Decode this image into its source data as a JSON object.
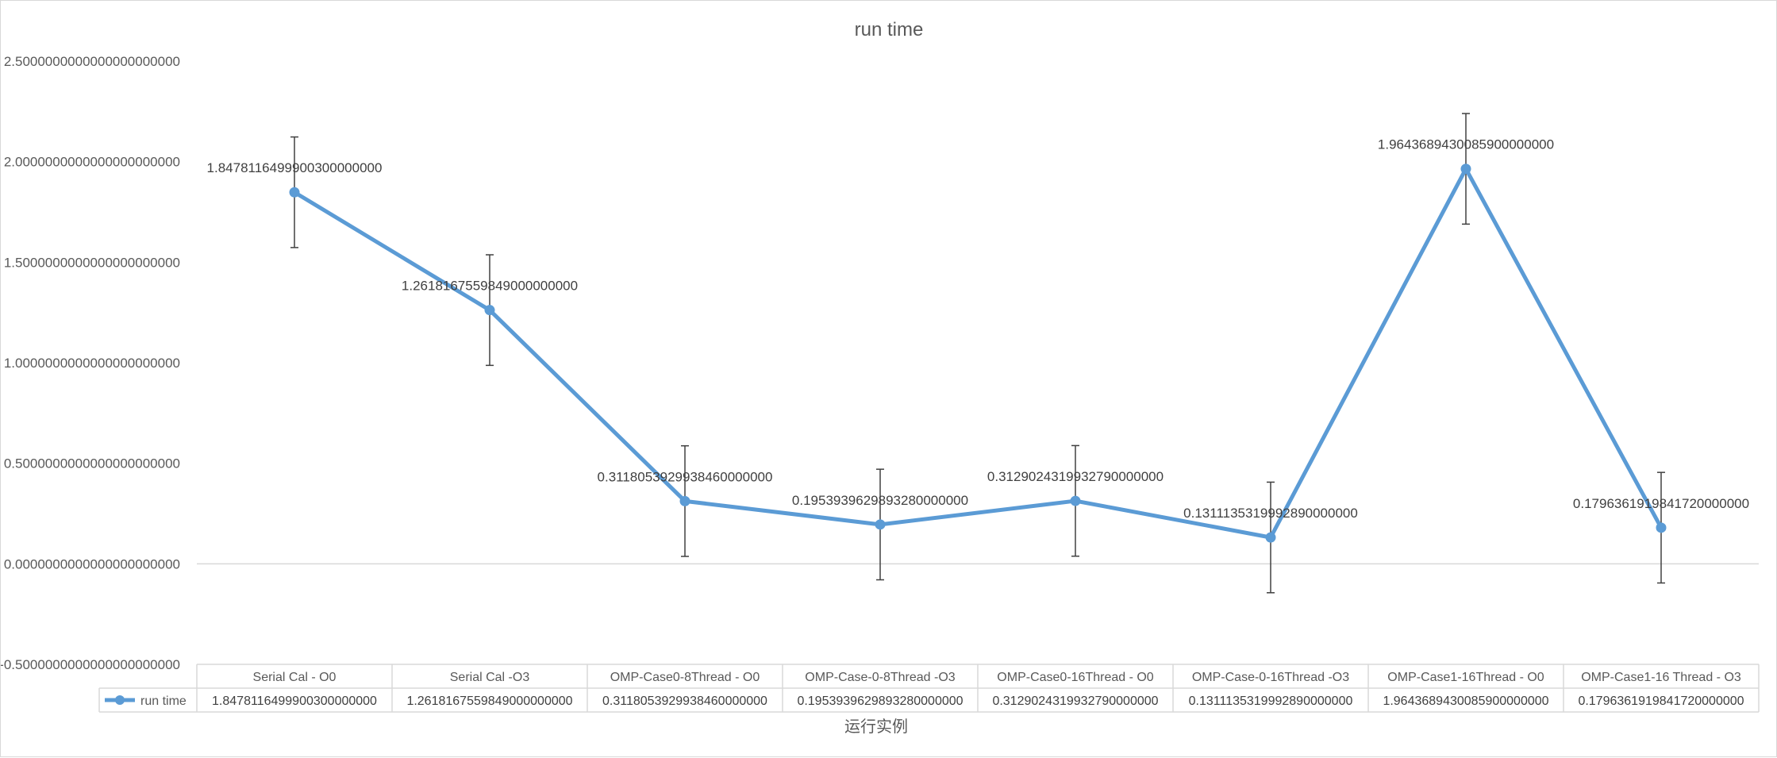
{
  "chart_data": {
    "type": "line",
    "title": "run time",
    "xlabel": "运行实例",
    "ylabel": "",
    "ylim": [
      -0.5,
      2.5
    ],
    "yticks": [
      -0.5,
      0.0,
      0.5,
      1.0,
      1.5,
      2.0,
      2.5
    ],
    "ytick_labels": [
      "-0.5000000000000000000000",
      "0.0000000000000000000000",
      "0.5000000000000000000000",
      "1.0000000000000000000000",
      "1.5000000000000000000000",
      "2.0000000000000000000000",
      "2.5000000000000000000000"
    ],
    "grid": false,
    "legend": "in data table",
    "categories": [
      "Serial Cal - O0",
      "Serial Cal -O3",
      "OMP-Case0-8Thread - O0",
      "OMP-Case-0-8Thread -O3",
      "OMP-Case0-16Thread - O0",
      "OMP-Case-0-16Thread -O3",
      "OMP-Case1-16Thread - O0",
      "OMP-Case1-16 Thread - O3"
    ],
    "series": [
      {
        "name": "run time",
        "color": "#5b9bd5",
        "values": [
          1.84781164999003,
          1.2618167559849,
          0.311805392993846,
          0.195393962989328,
          0.312902431993279,
          0.131113531999289,
          1.96436894300859,
          0.179636191984172
        ],
        "value_labels": [
          "1.8478116499900300000000",
          "1.2618167559849000000000",
          "0.3118053929938460000000",
          "0.1953939629893280000000",
          "0.3129024319932790000000",
          "0.1311135319992890000000",
          "1.9643689430085900000000",
          "0.1796361919841720000000"
        ],
        "error_bar": 0.275
      }
    ],
    "data_table_rows": [
      {
        "label": "run time",
        "cells": [
          "1.8478116499900300000000",
          "1.2618167559849000000000",
          "0.3118053929938460000000",
          "0.1953939629893280000000",
          "0.3129024319932790000000",
          "0.1311135319992890000000",
          "1.9643689430085900000000",
          "0.1796361919841720000000"
        ]
      }
    ],
    "colors": {
      "axis_text": "#595959",
      "grid_line": "#d9d9d9",
      "error_bar": "#404040"
    }
  }
}
